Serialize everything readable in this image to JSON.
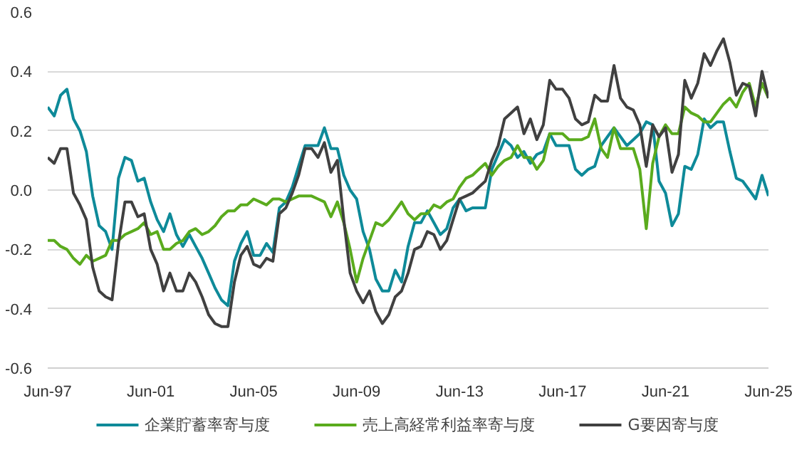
{
  "chart_data": {
    "type": "line",
    "x": [
      "1997-06",
      "1997-09",
      "1997-12",
      "1998-03",
      "1998-06",
      "1998-09",
      "1998-12",
      "1999-03",
      "1999-06",
      "1999-09",
      "1999-12",
      "2000-03",
      "2000-06",
      "2000-09",
      "2000-12",
      "2001-03",
      "2001-06",
      "2001-09",
      "2001-12",
      "2002-03",
      "2002-06",
      "2002-09",
      "2002-12",
      "2003-03",
      "2003-06",
      "2003-09",
      "2003-12",
      "2004-03",
      "2004-06",
      "2004-09",
      "2004-12",
      "2005-03",
      "2005-06",
      "2005-09",
      "2005-12",
      "2006-03",
      "2006-06",
      "2006-09",
      "2006-12",
      "2007-03",
      "2007-06",
      "2007-09",
      "2007-12",
      "2008-03",
      "2008-06",
      "2008-09",
      "2008-12",
      "2009-03",
      "2009-06",
      "2009-09",
      "2009-12",
      "2010-03",
      "2010-06",
      "2010-09",
      "2010-12",
      "2011-03",
      "2011-06",
      "2011-09",
      "2011-12",
      "2012-03",
      "2012-06",
      "2012-09",
      "2012-12",
      "2013-03",
      "2013-06",
      "2013-09",
      "2013-12",
      "2014-03",
      "2014-06",
      "2014-09",
      "2014-12",
      "2015-03",
      "2015-06",
      "2015-09",
      "2015-12",
      "2016-03",
      "2016-06",
      "2016-09",
      "2016-12",
      "2017-03",
      "2017-06",
      "2017-09",
      "2017-12",
      "2018-03",
      "2018-06",
      "2018-09",
      "2018-12",
      "2019-03",
      "2019-06",
      "2019-09",
      "2019-12",
      "2020-03",
      "2020-06",
      "2020-09",
      "2020-12",
      "2021-03",
      "2021-06",
      "2021-09",
      "2021-12",
      "2022-03",
      "2022-06",
      "2022-09",
      "2022-12",
      "2023-03",
      "2023-06",
      "2023-09",
      "2023-12",
      "2024-03",
      "2024-06",
      "2024-09",
      "2024-12",
      "2025-03",
      "2025-06"
    ],
    "series": [
      {
        "name": "企業貯蓄率寄与度",
        "color": "#0e8a99",
        "values": [
          0.28,
          0.25,
          0.32,
          0.34,
          0.24,
          0.2,
          0.13,
          -0.02,
          -0.12,
          -0.14,
          -0.2,
          0.04,
          0.11,
          0.1,
          0.03,
          0.04,
          -0.04,
          -0.1,
          -0.14,
          -0.08,
          -0.15,
          -0.19,
          -0.15,
          -0.19,
          -0.23,
          -0.28,
          -0.33,
          -0.37,
          -0.39,
          -0.24,
          -0.18,
          -0.14,
          -0.22,
          -0.22,
          -0.18,
          -0.21,
          -0.06,
          -0.04,
          0.01,
          0.08,
          0.15,
          0.15,
          0.15,
          0.21,
          0.14,
          0.14,
          0.05,
          0.0,
          -0.03,
          -0.14,
          -0.2,
          -0.3,
          -0.34,
          -0.34,
          -0.27,
          -0.31,
          -0.19,
          -0.11,
          -0.11,
          -0.07,
          -0.11,
          -0.15,
          -0.13,
          -0.06,
          -0.03,
          -0.07,
          -0.06,
          -0.06,
          -0.06,
          0.07,
          0.12,
          0.17,
          0.15,
          0.11,
          0.13,
          0.09,
          0.12,
          0.13,
          0.19,
          0.15,
          0.15,
          0.15,
          0.07,
          0.05,
          0.07,
          0.08,
          0.15,
          0.18,
          0.21,
          0.18,
          0.15,
          0.17,
          0.19,
          0.23,
          0.22,
          0.03,
          -0.01,
          -0.12,
          -0.08,
          0.08,
          0.07,
          0.12,
          0.24,
          0.21,
          0.23,
          0.23,
          0.13,
          0.04,
          0.03,
          0.0,
          -0.03,
          0.05,
          -0.02
        ]
      },
      {
        "name": "売上高経常利益率寄与度",
        "color": "#5aab1d",
        "values": [
          -0.17,
          -0.17,
          -0.19,
          -0.2,
          -0.23,
          -0.25,
          -0.22,
          -0.24,
          -0.23,
          -0.22,
          -0.17,
          -0.17,
          -0.15,
          -0.14,
          -0.13,
          -0.11,
          -0.15,
          -0.14,
          -0.2,
          -0.2,
          -0.18,
          -0.17,
          -0.14,
          -0.13,
          -0.15,
          -0.14,
          -0.12,
          -0.09,
          -0.07,
          -0.07,
          -0.05,
          -0.05,
          -0.03,
          -0.04,
          -0.05,
          -0.03,
          -0.03,
          -0.04,
          -0.03,
          -0.02,
          -0.02,
          -0.02,
          -0.03,
          -0.04,
          -0.09,
          -0.04,
          -0.11,
          -0.2,
          -0.31,
          -0.23,
          -0.17,
          -0.11,
          -0.12,
          -0.1,
          -0.07,
          -0.04,
          -0.08,
          -0.1,
          -0.08,
          -0.08,
          -0.05,
          -0.06,
          -0.04,
          -0.03,
          0.01,
          0.04,
          0.05,
          0.07,
          0.09,
          0.05,
          0.08,
          0.1,
          0.11,
          0.15,
          0.11,
          0.11,
          0.07,
          0.1,
          0.19,
          0.19,
          0.19,
          0.17,
          0.17,
          0.17,
          0.18,
          0.24,
          0.14,
          0.11,
          0.21,
          0.14,
          0.14,
          0.14,
          0.07,
          -0.13,
          0.09,
          0.18,
          0.22,
          0.19,
          0.19,
          0.28,
          0.26,
          0.25,
          0.23,
          0.23,
          0.26,
          0.29,
          0.31,
          0.28,
          0.33,
          0.36,
          0.28,
          0.36,
          0.31
        ]
      },
      {
        "name": "G要因寄与度",
        "color": "#404040",
        "values": [
          0.11,
          0.09,
          0.14,
          0.14,
          -0.01,
          -0.05,
          -0.1,
          -0.26,
          -0.34,
          -0.36,
          -0.37,
          -0.18,
          -0.04,
          -0.04,
          -0.09,
          -0.08,
          -0.2,
          -0.25,
          -0.34,
          -0.28,
          -0.34,
          -0.34,
          -0.28,
          -0.31,
          -0.36,
          -0.42,
          -0.45,
          -0.46,
          -0.46,
          -0.31,
          -0.22,
          -0.19,
          -0.25,
          -0.26,
          -0.23,
          -0.24,
          -0.08,
          -0.06,
          -0.01,
          0.05,
          0.14,
          0.14,
          0.11,
          0.16,
          0.06,
          0.1,
          -0.1,
          -0.28,
          -0.34,
          -0.38,
          -0.34,
          -0.41,
          -0.45,
          -0.42,
          -0.36,
          -0.34,
          -0.28,
          -0.2,
          -0.19,
          -0.14,
          -0.15,
          -0.2,
          -0.17,
          -0.1,
          -0.03,
          -0.02,
          -0.01,
          0.01,
          0.03,
          0.1,
          0.15,
          0.24,
          0.26,
          0.28,
          0.19,
          0.24,
          0.17,
          0.22,
          0.37,
          0.34,
          0.34,
          0.31,
          0.24,
          0.22,
          0.23,
          0.32,
          0.3,
          0.3,
          0.42,
          0.31,
          0.28,
          0.27,
          0.22,
          0.08,
          0.22,
          0.18,
          0.21,
          0.06,
          0.12,
          0.37,
          0.31,
          0.36,
          0.46,
          0.42,
          0.47,
          0.51,
          0.43,
          0.32,
          0.36,
          0.35,
          0.25,
          0.4,
          0.31
        ]
      }
    ],
    "xlim": [
      "1997-06",
      "2025-06"
    ],
    "xticks": [
      {
        "value": "1997-06",
        "label": "Jun-97"
      },
      {
        "value": "2001-06",
        "label": "Jun-01"
      },
      {
        "value": "2005-06",
        "label": "Jun-05"
      },
      {
        "value": "2009-06",
        "label": "Jun-09"
      },
      {
        "value": "2013-06",
        "label": "Jun-13"
      },
      {
        "value": "2017-06",
        "label": "Jun-17"
      },
      {
        "value": "2021-06",
        "label": "Jun-21"
      },
      {
        "value": "2025-06",
        "label": "Jun-25"
      }
    ],
    "ylim": [
      -0.6,
      0.6
    ],
    "yticks": [
      {
        "value": -0.6,
        "label": "-0.6"
      },
      {
        "value": -0.4,
        "label": "-0.4"
      },
      {
        "value": -0.2,
        "label": "-0.2"
      },
      {
        "value": 0,
        "label": "0.0"
      },
      {
        "value": 0.2,
        "label": "0.2"
      },
      {
        "value": 0.4,
        "label": "0.4"
      },
      {
        "value": 0.6,
        "label": "0.6"
      }
    ],
    "grid": "y",
    "legend": "bottom",
    "marker": "none",
    "line_style": "solid"
  }
}
